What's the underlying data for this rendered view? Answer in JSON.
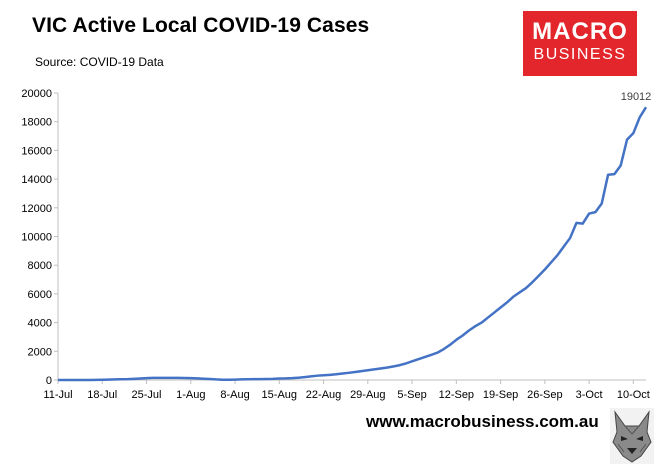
{
  "header": {
    "title": "VIC Active Local COVID-19 Cases",
    "source": "Source: COVID-19 Data"
  },
  "logo": {
    "line1": "MACRO",
    "line2": "BUSINESS",
    "color": "#e3262b"
  },
  "footer": {
    "website": "www.macrobusiness.com.au",
    "mascot_icon": "wolf-head-icon"
  },
  "chart_data": {
    "type": "line",
    "title": "VIC Active Local COVID-19 Cases",
    "subtitle": "Source: COVID-19 Data",
    "xlabel": "",
    "ylabel": "",
    "ylim": [
      0,
      20000
    ],
    "yticks": [
      0,
      2000,
      4000,
      6000,
      8000,
      10000,
      12000,
      14000,
      16000,
      18000,
      20000
    ],
    "xticks": [
      "11-Jul",
      "18-Jul",
      "25-Jul",
      "1-Aug",
      "8-Aug",
      "15-Aug",
      "22-Aug",
      "29-Aug",
      "5-Sep",
      "12-Sep",
      "19-Sep",
      "26-Sep",
      "3-Oct",
      "10-Oct"
    ],
    "grid": false,
    "legend": "none",
    "line_color": "#4472c4",
    "end_label": "19012",
    "series": [
      {
        "x": [
          "11-Jul",
          "12-Jul",
          "13-Jul",
          "14-Jul",
          "15-Jul",
          "16-Jul",
          "17-Jul",
          "18-Jul",
          "19-Jul",
          "20-Jul",
          "21-Jul",
          "22-Jul",
          "23-Jul",
          "24-Jul",
          "25-Jul",
          "26-Jul",
          "27-Jul",
          "28-Jul",
          "29-Jul",
          "30-Jul",
          "31-Jul",
          "1-Aug",
          "2-Aug",
          "3-Aug",
          "4-Aug",
          "5-Aug",
          "6-Aug",
          "7-Aug",
          "8-Aug",
          "9-Aug",
          "10-Aug",
          "11-Aug",
          "12-Aug",
          "13-Aug",
          "14-Aug",
          "15-Aug",
          "16-Aug",
          "17-Aug",
          "18-Aug",
          "19-Aug",
          "20-Aug",
          "21-Aug",
          "22-Aug",
          "23-Aug",
          "24-Aug",
          "25-Aug",
          "26-Aug",
          "27-Aug",
          "28-Aug",
          "29-Aug",
          "30-Aug",
          "31-Aug",
          "1-Sep",
          "2-Sep",
          "3-Sep",
          "4-Sep",
          "5-Sep",
          "6-Sep",
          "7-Sep",
          "8-Sep",
          "9-Sep",
          "10-Sep",
          "11-Sep",
          "12-Sep",
          "13-Sep",
          "14-Sep",
          "15-Sep",
          "16-Sep",
          "17-Sep",
          "18-Sep",
          "19-Sep",
          "20-Sep",
          "21-Sep",
          "22-Sep",
          "23-Sep",
          "24-Sep",
          "25-Sep",
          "26-Sep",
          "27-Sep",
          "28-Sep",
          "29-Sep",
          "30-Sep",
          "1-Oct",
          "2-Oct",
          "3-Oct",
          "4-Oct",
          "5-Oct",
          "6-Oct",
          "7-Oct",
          "8-Oct",
          "9-Oct",
          "10-Oct",
          "11-Oct",
          "12-Oct"
        ],
        "values": [
          0,
          0,
          0,
          0,
          0,
          0,
          10,
          20,
          30,
          40,
          50,
          60,
          80,
          100,
          130,
          150,
          150,
          150,
          150,
          150,
          140,
          130,
          110,
          90,
          70,
          40,
          20,
          20,
          30,
          40,
          50,
          60,
          60,
          70,
          80,
          100,
          110,
          130,
          160,
          200,
          250,
          300,
          330,
          360,
          400,
          450,
          500,
          560,
          620,
          680,
          740,
          800,
          860,
          940,
          1030,
          1150,
          1300,
          1450,
          1600,
          1750,
          1900,
          2150,
          2450,
          2800,
          3100,
          3450,
          3750,
          4000,
          4350,
          4700,
          5050,
          5400,
          5800,
          6100,
          6400,
          6800,
          7250,
          7700,
          8200,
          8700,
          9300,
          9900,
          10950,
          10900,
          11600,
          11700,
          12300,
          14300,
          14350,
          14950,
          16750,
          17200,
          18300,
          19012
        ]
      }
    ]
  }
}
